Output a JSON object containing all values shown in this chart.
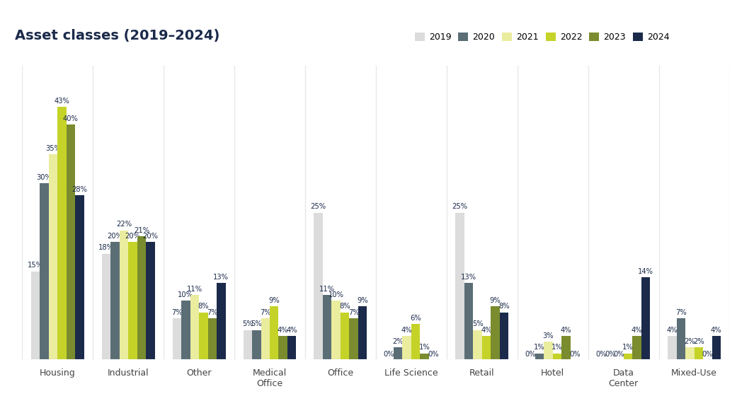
{
  "title": "Asset classes (2019–2024)",
  "categories": [
    "Housing",
    "Industrial",
    "Other",
    "Medical\nOffice",
    "Office",
    "Life Science",
    "Retail",
    "Hotel",
    "Data\nCenter",
    "Mixed-Use"
  ],
  "years": [
    "2019",
    "2020",
    "2021",
    "2022",
    "2023",
    "2024"
  ],
  "colors": [
    "#dcdcdc",
    "#5b6e76",
    "#eaec9e",
    "#c5d328",
    "#7a8c2e",
    "#1b2a4a"
  ],
  "data": {
    "Housing": [
      15,
      30,
      35,
      43,
      40,
      28
    ],
    "Industrial": [
      18,
      20,
      22,
      20,
      21,
      20
    ],
    "Other": [
      7,
      10,
      11,
      8,
      7,
      13
    ],
    "Medical\nOffice": [
      5,
      5,
      7,
      9,
      4,
      4
    ],
    "Office": [
      25,
      11,
      10,
      8,
      7,
      9
    ],
    "Life Science": [
      0,
      2,
      4,
      6,
      1,
      0
    ],
    "Retail": [
      25,
      13,
      5,
      4,
      9,
      8
    ],
    "Hotel": [
      0,
      1,
      3,
      1,
      4,
      0
    ],
    "Data\nCenter": [
      0,
      0,
      0,
      1,
      4,
      14
    ],
    "Mixed-Use": [
      4,
      7,
      2,
      2,
      0,
      4
    ]
  },
  "background_color": "#ffffff",
  "grid_color": "#e8e8e8",
  "ylim": [
    0,
    50
  ],
  "bar_width": 0.125,
  "label_fontsize": 7.2,
  "title_fontsize": 14,
  "title_color": "#1b2a4a",
  "legend_fontsize": 9,
  "axis_label_fontsize": 9,
  "label_color": "#1b2a4a"
}
